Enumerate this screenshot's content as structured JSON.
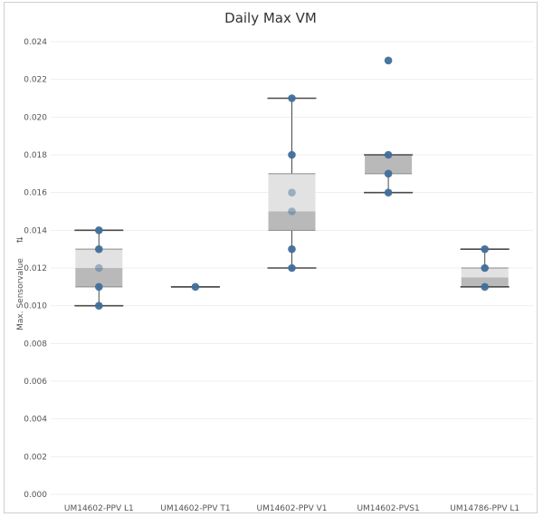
{
  "chart_data": {
    "type": "box",
    "title": "Daily Max VM",
    "ylabel": "Max. Sensorvalue",
    "ylabel_icon": "sort-icon",
    "xlabel": "",
    "ylim": [
      0,
      0.024
    ],
    "yticks": [
      "0.000",
      "0.002",
      "0.004",
      "0.006",
      "0.008",
      "0.010",
      "0.012",
      "0.014",
      "0.016",
      "0.018",
      "0.020",
      "0.022",
      "0.024"
    ],
    "grid": true,
    "categories": [
      "UM14602-PPV L1",
      "UM14602-PPV T1",
      "UM14602-PPV V1",
      "UM14602-PVS1",
      "UM14786-PPV L1"
    ],
    "boxes": [
      {
        "whisker_low": 0.01,
        "q1": 0.011,
        "median": 0.012,
        "q3": 0.013,
        "whisker_high": 0.014,
        "points": [
          0.01,
          0.011,
          0.012,
          0.013,
          0.014
        ]
      },
      {
        "whisker_low": 0.011,
        "q1": 0.011,
        "median": 0.011,
        "q3": 0.011,
        "whisker_high": 0.011,
        "points": [
          0.011
        ]
      },
      {
        "whisker_low": 0.012,
        "q1": 0.014,
        "median": 0.015,
        "q3": 0.017,
        "whisker_high": 0.021,
        "points": [
          0.012,
          0.013,
          0.015,
          0.016,
          0.018,
          0.021
        ]
      },
      {
        "whisker_low": 0.016,
        "q1": 0.017,
        "median": 0.018,
        "q3": 0.018,
        "whisker_high": 0.018,
        "points": [
          0.016,
          0.017,
          0.018,
          0.023
        ]
      },
      {
        "whisker_low": 0.011,
        "q1": 0.011,
        "median": 0.0115,
        "q3": 0.012,
        "whisker_high": 0.013,
        "points": [
          0.011,
          0.012,
          0.013
        ]
      }
    ],
    "colors": {
      "point": "#3f6e9a",
      "box_upper": "#e2e2e2",
      "box_lower": "#b9b9b9",
      "whisker": "#4a4a4a",
      "grid": "#eeeeee"
    }
  }
}
